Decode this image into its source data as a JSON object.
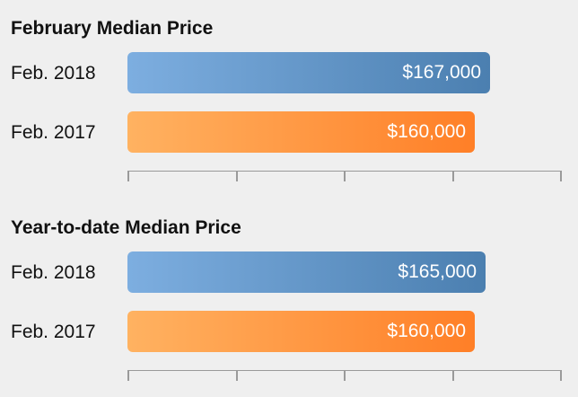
{
  "chart_data": [
    {
      "type": "bar",
      "orientation": "horizontal",
      "title": "February Median Price",
      "categories": [
        "Feb. 2018",
        "Feb. 2017"
      ],
      "values": [
        167000,
        160000
      ],
      "value_labels": [
        "$167,000",
        "$160,000"
      ],
      "bar_colors": [
        "#5b8fc4",
        "#ff8f36"
      ],
      "xlim": [
        0,
        200000
      ],
      "tick_count": 5,
      "grid": false,
      "legend": "none"
    },
    {
      "type": "bar",
      "orientation": "horizontal",
      "title": "Year-to-date Median Price",
      "categories": [
        "Feb. 2018",
        "Feb. 2017"
      ],
      "values": [
        165000,
        160000
      ],
      "value_labels": [
        "$165,000",
        "$160,000"
      ],
      "bar_colors": [
        "#5b8fc4",
        "#ff8f36"
      ],
      "xlim": [
        0,
        200000
      ],
      "tick_count": 5,
      "grid": false,
      "legend": "none"
    }
  ]
}
